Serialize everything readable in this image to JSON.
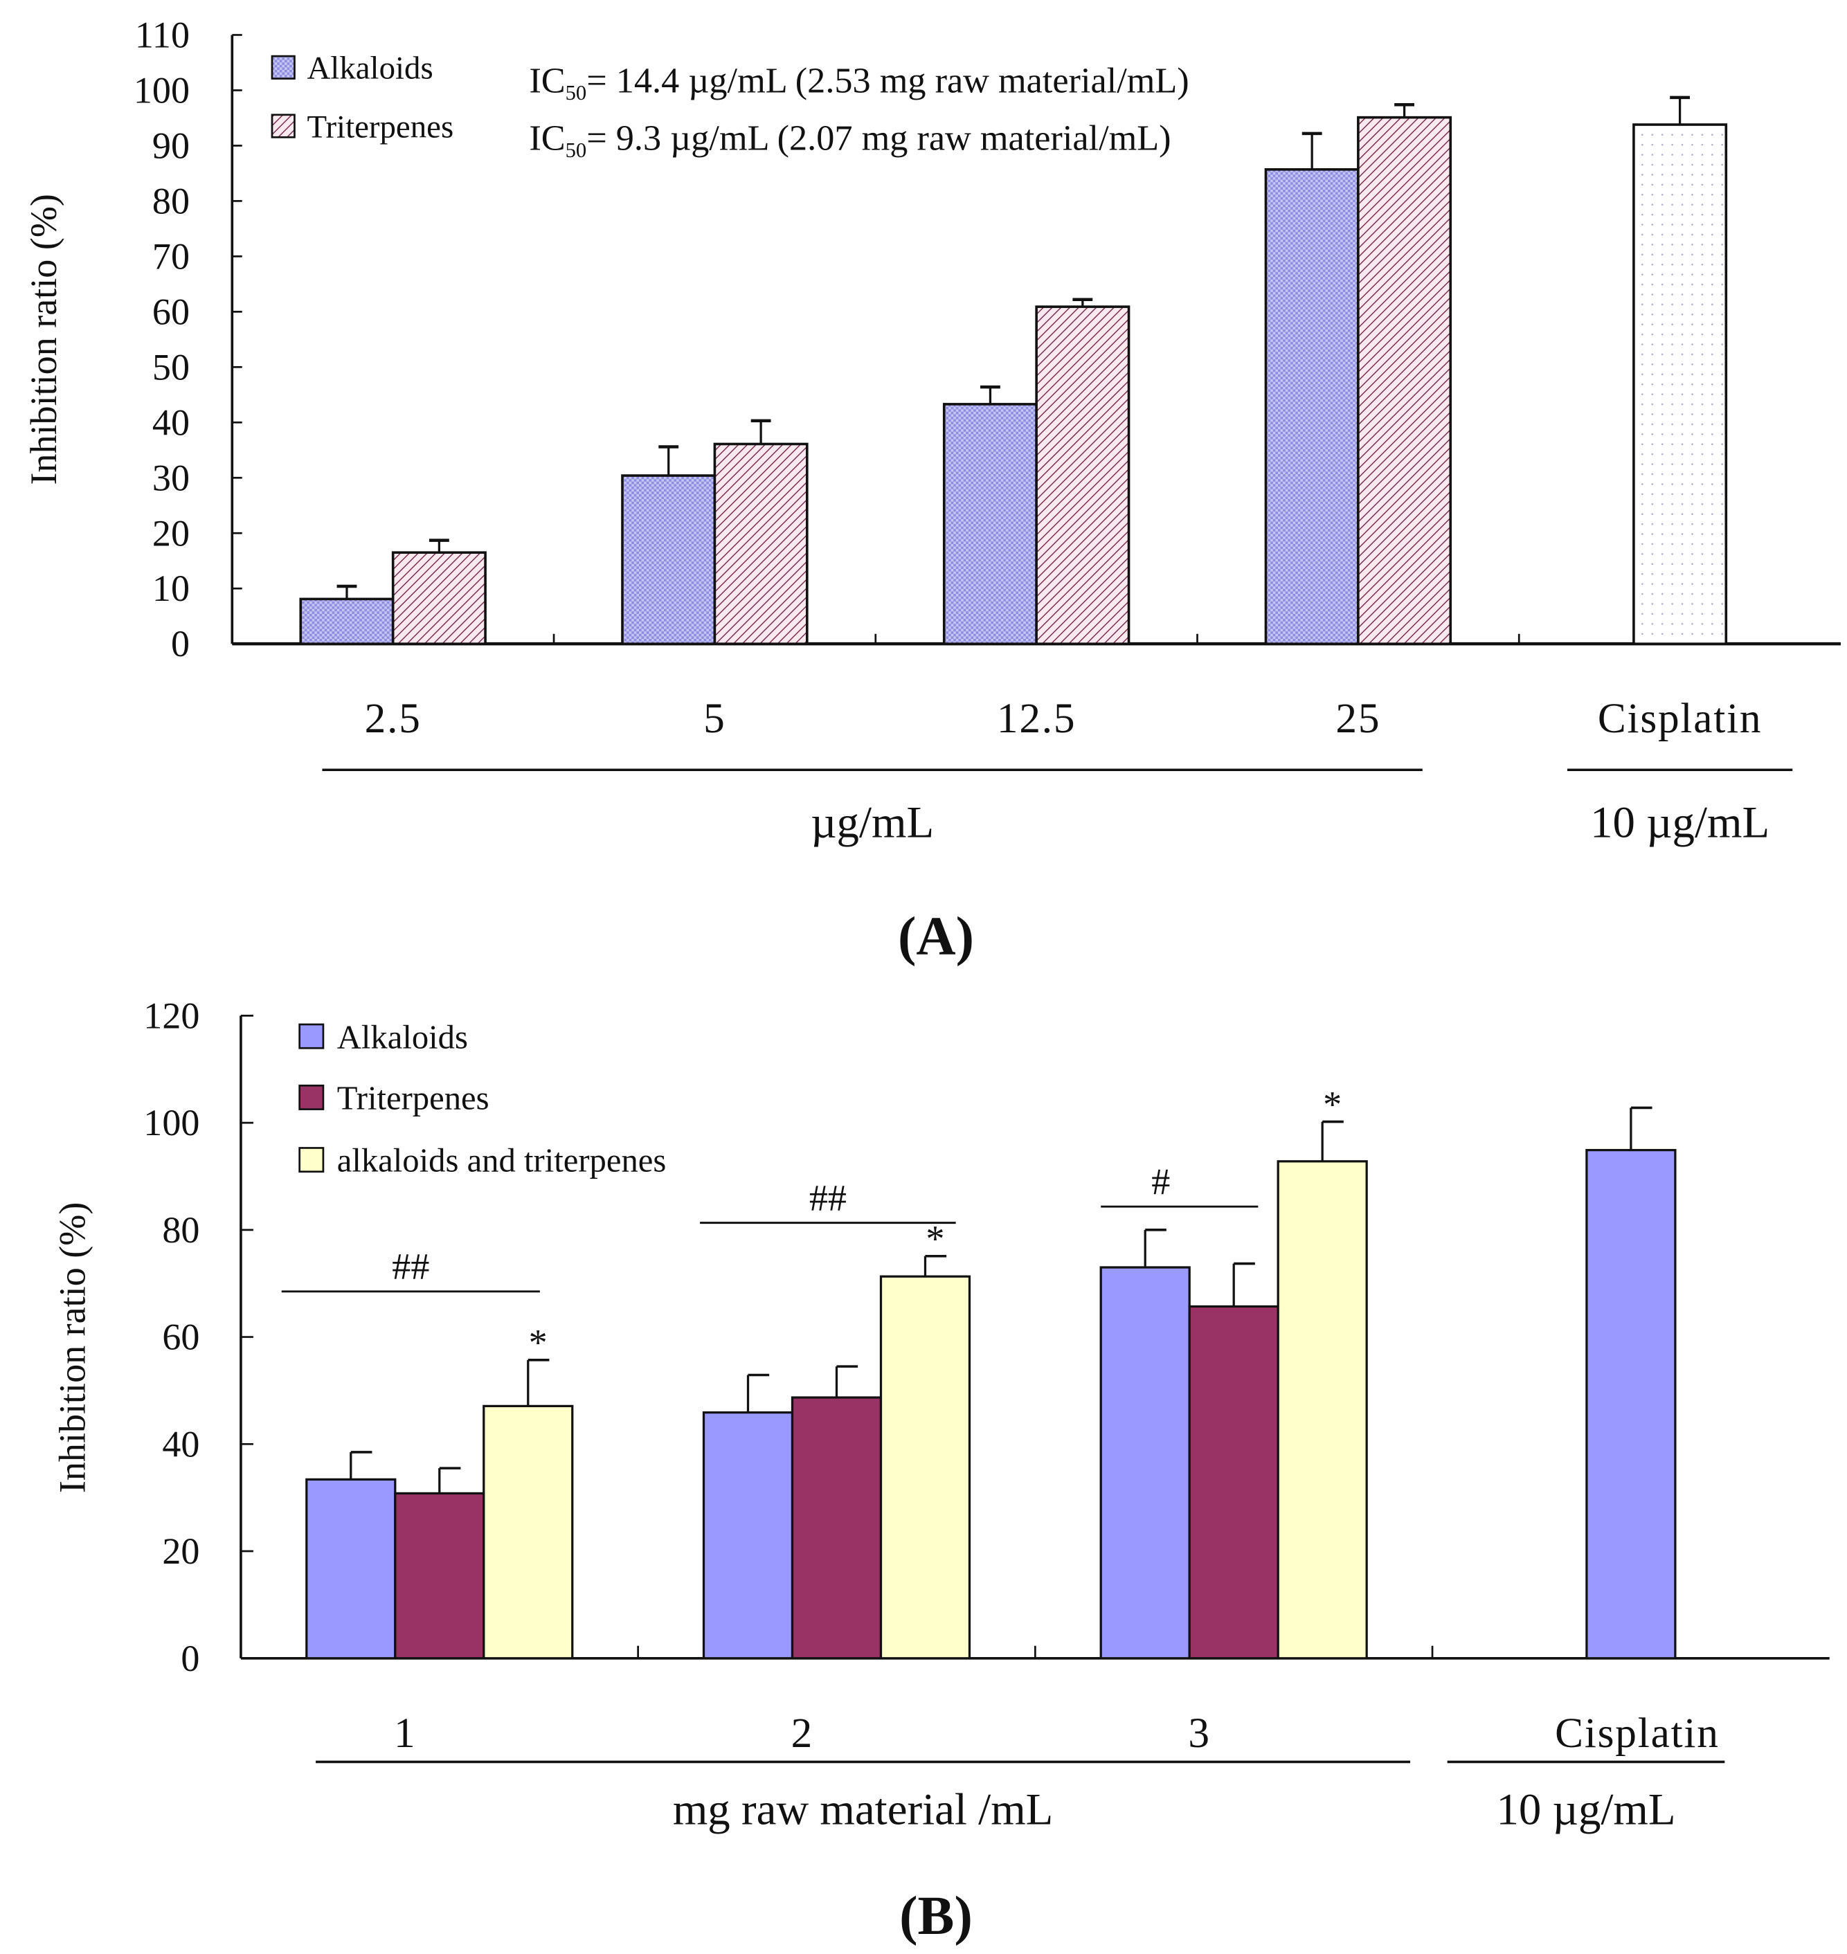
{
  "chart_data": [
    {
      "panel_label": "(A)",
      "type": "bar",
      "ylabel": "Inhibition ratio (%)",
      "ylim": [
        0,
        110
      ],
      "yticks": [
        0,
        10,
        20,
        30,
        40,
        50,
        60,
        70,
        80,
        90,
        100,
        110
      ],
      "categories": [
        "2.5",
        "5",
        "12.5",
        "25",
        "Cisplatin"
      ],
      "group_labels": [
        {
          "text": "µg/mL",
          "spans": [
            "2.5",
            "5",
            "12.5",
            "25"
          ]
        },
        {
          "text": "10 µg/mL",
          "spans": [
            "Cisplatin"
          ]
        }
      ],
      "legend": [
        "Alkaloids",
        "Triterpenes"
      ],
      "legend_position": "top-left",
      "annotations": [
        "IC50= 14.4 µg/mL (2.53 mg  raw material/mL)",
        "IC50= 9.3 µg/mL (2.07 mg raw material/mL)"
      ],
      "series": [
        {
          "name": "Alkaloids",
          "pattern": "crosshatch-blue",
          "color": "#9999ee",
          "values": [
            8.1,
            30.4,
            43.3,
            85.7,
            null
          ],
          "errors": [
            2.3,
            5.2,
            3.1,
            6.5,
            null
          ]
        },
        {
          "name": "Triterpenes",
          "pattern": "diagonal-maroon",
          "color": "#993366",
          "values": [
            16.5,
            36.1,
            60.9,
            95.1,
            null
          ],
          "errors": [
            2.2,
            4.2,
            1.3,
            2.3,
            null
          ]
        },
        {
          "name": "Cisplatin",
          "pattern": "dots-white",
          "color": "#ffffff",
          "values": [
            null,
            null,
            null,
            null,
            93.8
          ],
          "errors": [
            null,
            null,
            null,
            null,
            4.9
          ]
        }
      ]
    },
    {
      "panel_label": "(B)",
      "type": "bar",
      "ylabel": "Inhibition ratio (%)",
      "ylim": [
        0,
        120
      ],
      "yticks": [
        0,
        20,
        40,
        60,
        80,
        100,
        120
      ],
      "categories": [
        "1",
        "2",
        "3",
        "Cisplatin"
      ],
      "group_labels": [
        {
          "text": "mg raw material /mL",
          "spans": [
            "1",
            "2",
            "3"
          ]
        },
        {
          "text": "10 µg/mL",
          "spans": [
            "Cisplatin"
          ]
        }
      ],
      "legend": [
        "Alkaloids",
        "Triterpenes",
        "alkaloids and triterpenes"
      ],
      "legend_position": "top-left",
      "series": [
        {
          "name": "Alkaloids",
          "color": "#9999ff",
          "values": [
            33.4,
            45.9,
            73.0,
            94.9
          ],
          "errors": [
            5.1,
            7.0,
            7.0,
            7.9
          ]
        },
        {
          "name": "Triterpenes",
          "color": "#993366",
          "values": [
            30.8,
            48.7,
            65.7,
            null
          ],
          "errors": [
            4.7,
            5.8,
            8.0,
            null
          ]
        },
        {
          "name": "alkaloids and triterpenes",
          "color": "#ffffcc",
          "values": [
            47.1,
            71.3,
            92.8,
            null
          ],
          "errors": [
            8.6,
            3.8,
            7.4,
            null
          ]
        }
      ],
      "significance": [
        {
          "group": "1",
          "bracket": "##",
          "star": "*"
        },
        {
          "group": "2",
          "bracket": "##",
          "star": "*"
        },
        {
          "group": "3",
          "bracket": "#",
          "star": "*"
        }
      ]
    }
  ]
}
